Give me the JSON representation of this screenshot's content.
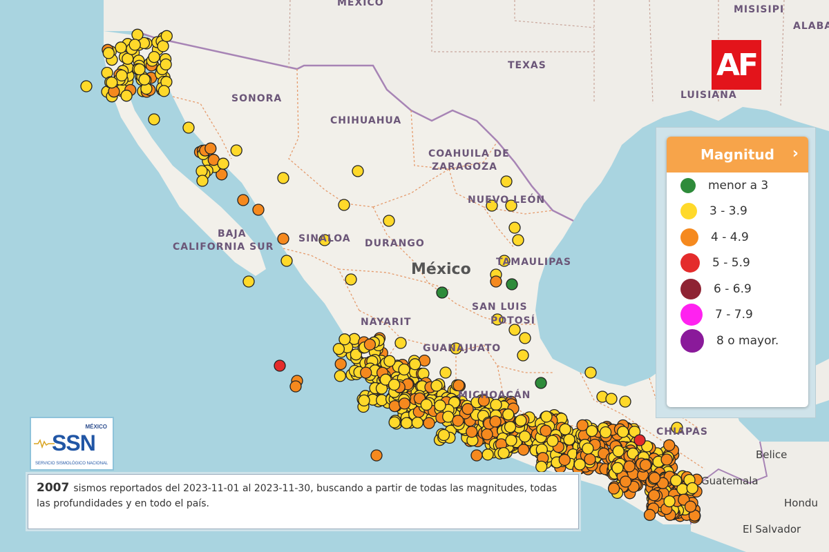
{
  "map": {
    "states": [
      {
        "label": "SONORA",
        "x": 335,
        "y": 135
      },
      {
        "label": "CHIHUAHUA",
        "x": 478,
        "y": 167
      },
      {
        "label": "COAHUILA DE",
        "x": 620,
        "y": 215
      },
      {
        "label": "ZARAGOZA",
        "x": 625,
        "y": 234
      },
      {
        "label": "NUEVO LEÓN",
        "x": 677,
        "y": 282
      },
      {
        "label": "BAJA",
        "x": 315,
        "y": 331
      },
      {
        "label": "CALIFORNIA SUR",
        "x": 250,
        "y": 350
      },
      {
        "label": "SINALOA",
        "x": 432,
        "y": 338
      },
      {
        "label": "DURANGO",
        "x": 528,
        "y": 345
      },
      {
        "label": "TAMAULIPAS",
        "x": 718,
        "y": 372
      },
      {
        "label": "SAN LUIS",
        "x": 683,
        "y": 437
      },
      {
        "label": "POTOSÍ",
        "x": 710,
        "y": 457
      },
      {
        "label": "NAYARIT",
        "x": 522,
        "y": 459
      },
      {
        "label": "GUANAJUATO",
        "x": 612,
        "y": 497
      },
      {
        "label": "MICHOACÁN",
        "x": 663,
        "y": 565
      },
      {
        "label": "CHIAPAS",
        "x": 950,
        "y": 618
      },
      {
        "label": "TEXAS",
        "x": 735,
        "y": 87
      },
      {
        "label": "LUISIANA",
        "x": 985,
        "y": 130
      },
      {
        "label": "MÉXICO",
        "x": 488,
        "y": -4
      },
      {
        "label": "MISISIPI",
        "x": 1062,
        "y": 6
      },
      {
        "label": "ALABA",
        "x": 1148,
        "y": 30
      }
    ],
    "country_label": "México",
    "neighbors": [
      {
        "label": "Belice",
        "x": 1094,
        "y": 650
      },
      {
        "label": "Guatemala",
        "x": 1015,
        "y": 688
      },
      {
        "label": "Hondu",
        "x": 1135,
        "y": 720
      },
      {
        "label": "El Salvador",
        "x": 1075,
        "y": 758
      }
    ]
  },
  "logo": {
    "text": "AF"
  },
  "legend": {
    "title": "Magnitud",
    "chevron": "›",
    "items": [
      {
        "label": "menor a 3",
        "color": "#2e8b3a",
        "size": 22
      },
      {
        "label": "3 - 3.9",
        "color": "#ffd92a",
        "size": 24
      },
      {
        "label": "4 - 4.9",
        "color": "#f5891e",
        "size": 26
      },
      {
        "label": "5 - 5.9",
        "color": "#e42c2c",
        "size": 28
      },
      {
        "label": "6 - 6.9",
        "color": "#8e2333",
        "size": 30
      },
      {
        "label": "7 - 7.9",
        "color": "#ff22f0",
        "size": 32
      },
      {
        "label": "8 o mayor.",
        "color": "#8a1a9a",
        "size": 34
      }
    ]
  },
  "ssn": {
    "country": "MÉXICO",
    "name": "SSN",
    "subtitle": "SERVICIO SISMOLÓGICO NACIONAL"
  },
  "summary": {
    "count": "2007",
    "text": "sismos reportados del 2023-11-01 al 2023-11-30, buscando a partir de todas las magnitudes, todas las profundidades y en todo el país."
  }
}
